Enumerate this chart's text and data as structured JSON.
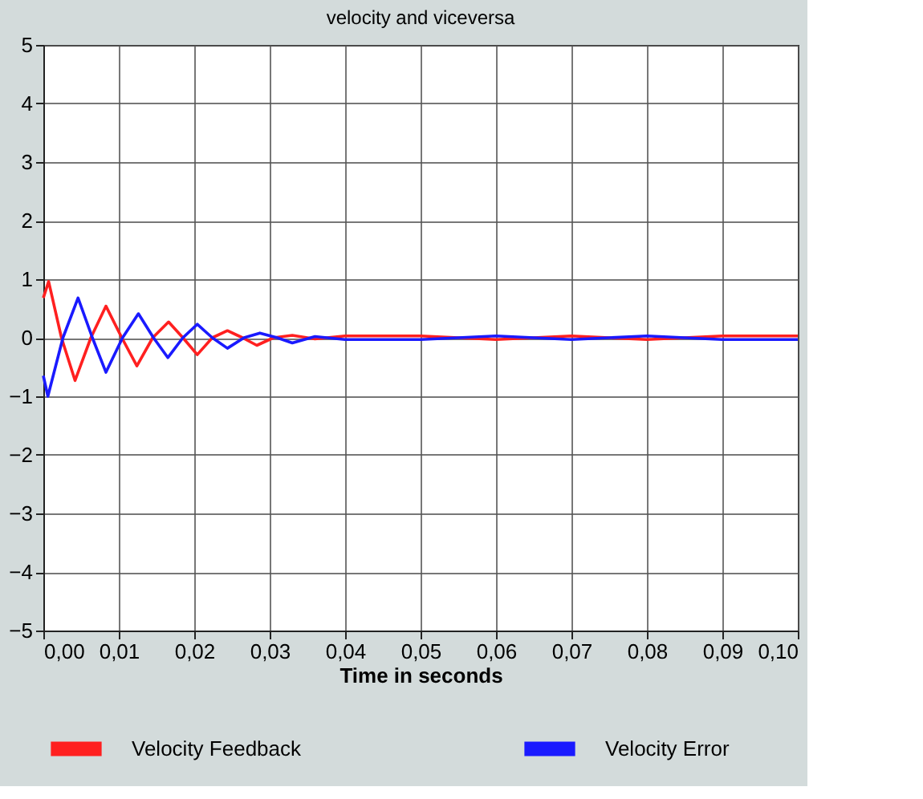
{
  "chart_data": {
    "type": "line",
    "title": "velocity and viceversa",
    "xlabel": "Time in seconds",
    "xlim": [
      0,
      0.1
    ],
    "xticks": [
      {
        "value": 0,
        "label": "0,00"
      },
      {
        "value": 0.01,
        "label": "0,01"
      },
      {
        "value": 0.02,
        "label": "0,02"
      },
      {
        "value": 0.03,
        "label": "0,03"
      },
      {
        "value": 0.04,
        "label": "0,04"
      },
      {
        "value": 0.05,
        "label": "0,05"
      },
      {
        "value": 0.06,
        "label": "0,06"
      },
      {
        "value": 0.07,
        "label": "0,07"
      },
      {
        "value": 0.08,
        "label": "0,08"
      },
      {
        "value": 0.09,
        "label": "0,09"
      },
      {
        "value": 0.1,
        "label": "0,10"
      }
    ],
    "ylim": [
      -5,
      5
    ],
    "yticks": [
      -5,
      -4,
      -3,
      -2,
      -1,
      0,
      1,
      2,
      3,
      4,
      5
    ],
    "grid": true,
    "legend": "bottom",
    "marker": "none",
    "line_style": "solid",
    "series": [
      {
        "name": "Velocity Feedback",
        "color": "#ff2020",
        "x": [
          0,
          0.0007,
          0.0024,
          0.0042,
          0.0063,
          0.0083,
          0.0104,
          0.0124,
          0.0145,
          0.0166,
          0.0185,
          0.0204,
          0.0224,
          0.0244,
          0.0264,
          0.0283,
          0.0305,
          0.033,
          0.036,
          0.04,
          0.05,
          0.06,
          0.07,
          0.08,
          0.09,
          0.1
        ],
        "values": [
          0.68,
          0.96,
          0.0,
          -0.73,
          0.0,
          0.54,
          0.0,
          -0.48,
          0.0,
          0.27,
          0.0,
          -0.29,
          0.0,
          0.12,
          0.0,
          -0.13,
          0.0,
          0.04,
          -0.02,
          0.03,
          0.03,
          -0.03,
          0.03,
          -0.03,
          0.03,
          0.03
        ]
      },
      {
        "name": "Velocity Error",
        "color": "#1a1aff",
        "x": [
          0,
          0.0006,
          0.0026,
          0.0046,
          0.0065,
          0.0083,
          0.0105,
          0.0126,
          0.0146,
          0.0165,
          0.0185,
          0.0204,
          0.0224,
          0.0244,
          0.0266,
          0.0287,
          0.031,
          0.033,
          0.036,
          0.04,
          0.05,
          0.06,
          0.07,
          0.08,
          0.09,
          0.1
        ],
        "values": [
          -0.65,
          -1.0,
          0.0,
          0.68,
          0.0,
          -0.59,
          0.0,
          0.41,
          0.0,
          -0.34,
          0.0,
          0.23,
          0.0,
          -0.18,
          0.0,
          0.08,
          0.0,
          -0.09,
          0.02,
          -0.03,
          -0.03,
          0.03,
          -0.03,
          0.03,
          -0.03,
          -0.03
        ]
      }
    ]
  }
}
